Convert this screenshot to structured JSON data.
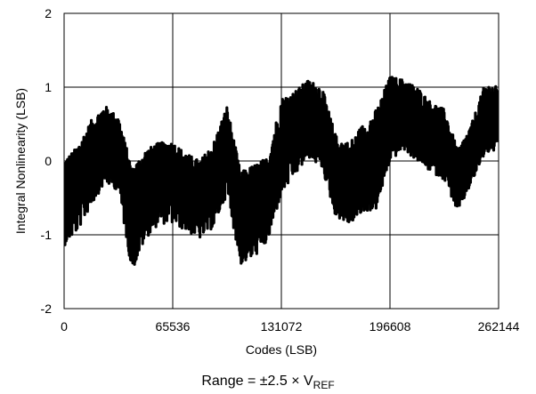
{
  "chart_data": {
    "type": "line",
    "title": "",
    "xlabel": "Codes (LSB)",
    "ylabel": "Integral Nonlinearity (LSB)",
    "xlim": [
      0,
      262144
    ],
    "ylim": [
      -2,
      2
    ],
    "xticks": [
      0,
      65536,
      131072,
      196608,
      262144
    ],
    "xtick_labels": [
      "0",
      "65536",
      "131072",
      "196608",
      "262144"
    ],
    "yticks": [
      2,
      1,
      0,
      -1,
      -2
    ],
    "ytick_labels": [
      "2",
      "1",
      "0",
      "-1",
      "-2"
    ],
    "grid": true,
    "legend": "none",
    "line_color": "#000000",
    "condition": {
      "prefix": "Range = ±2.5 × V",
      "subscript": "REF"
    },
    "series": [
      {
        "x": [
          0,
          8192,
          16384,
          24576,
          32768,
          40960,
          49152,
          57344,
          65536,
          73728,
          81920,
          90112,
          98304,
          106496,
          114688,
          122880,
          131072,
          139264,
          147456,
          155648,
          163840,
          172032,
          180224,
          188416,
          196608,
          204800,
          212992,
          221184,
          229376,
          237568,
          245760,
          253952,
          262144
        ],
        "center": [
          -0.35,
          -0.2,
          0.05,
          0.3,
          0.2,
          -0.6,
          -0.35,
          -0.1,
          -0.1,
          -0.3,
          -0.4,
          -0.3,
          0.2,
          -0.75,
          -0.65,
          -0.45,
          0.25,
          0.45,
          0.65,
          0.5,
          -0.3,
          -0.45,
          -0.2,
          -0.1,
          0.55,
          0.75,
          0.55,
          0.4,
          0.3,
          -0.3,
          0.05,
          0.55,
          0.6
        ],
        "upper": [
          0.0,
          0.2,
          0.55,
          0.75,
          0.6,
          -0.1,
          0.15,
          0.25,
          0.25,
          0.1,
          0.0,
          0.25,
          0.75,
          -0.15,
          -0.05,
          0.05,
          0.85,
          0.95,
          1.1,
          1.0,
          0.35,
          0.25,
          0.5,
          0.7,
          1.15,
          1.1,
          1.0,
          0.8,
          0.7,
          0.15,
          0.5,
          1.05,
          1.0
        ],
        "lower": [
          -1.15,
          -0.95,
          -0.6,
          -0.3,
          -0.4,
          -1.5,
          -1.05,
          -0.85,
          -0.85,
          -0.95,
          -1.05,
          -0.9,
          -0.45,
          -1.4,
          -1.3,
          -1.1,
          -0.45,
          -0.2,
          0.05,
          -0.1,
          -0.75,
          -0.85,
          -0.7,
          -0.65,
          0.0,
          0.15,
          0.0,
          -0.15,
          -0.25,
          -0.7,
          -0.3,
          0.1,
          0.15
        ]
      }
    ]
  }
}
